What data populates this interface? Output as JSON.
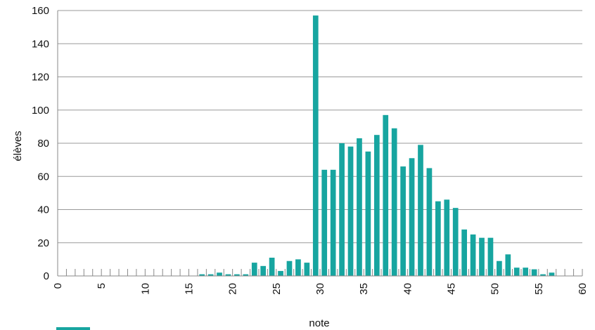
{
  "chart_data": {
    "type": "bar",
    "title": "",
    "xlabel": "note",
    "ylabel": "élèves",
    "xlim": [
      0,
      60
    ],
    "ylim": [
      0,
      160
    ],
    "x_ticks": [
      0,
      5,
      10,
      15,
      20,
      25,
      30,
      35,
      40,
      45,
      50,
      55,
      60
    ],
    "y_ticks": [
      0,
      20,
      40,
      60,
      80,
      100,
      120,
      140,
      160
    ],
    "grid": "horizontal",
    "legend_position": "bottom-left",
    "colors": {
      "bar": "#17a5a0",
      "grid": "#9a9a9a",
      "axis": "#888888"
    },
    "series": [
      {
        "x": [
          16,
          17,
          18,
          19,
          20,
          21,
          22,
          23,
          24,
          25,
          26,
          27,
          28,
          29,
          30,
          31,
          32,
          33,
          34,
          35,
          36,
          37,
          38,
          39,
          40,
          41,
          42,
          43,
          44,
          45,
          46,
          47,
          48,
          49,
          50,
          51,
          52,
          53,
          54,
          55,
          56
        ],
        "values": [
          1,
          1,
          2,
          1,
          1,
          1,
          8,
          6,
          11,
          3,
          9,
          10,
          8,
          157,
          64,
          64,
          80,
          78,
          83,
          75,
          85,
          97,
          89,
          66,
          71,
          79,
          65,
          45,
          46,
          41,
          28,
          25,
          23,
          23,
          9,
          13,
          5,
          5,
          4,
          1,
          2
        ]
      }
    ]
  }
}
